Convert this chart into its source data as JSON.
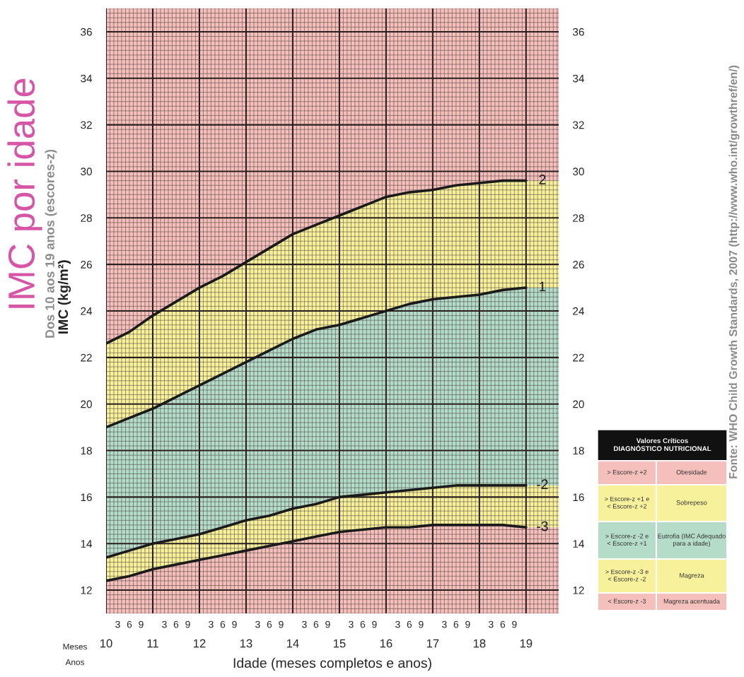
{
  "chart_data": {
    "type": "line",
    "title": "IMC por idade",
    "subtitle": "Dos 10 aos 19 anos (escores-z)",
    "ylabel": "IMC (kg/m²)",
    "xlabel": "Idade (meses completos e anos)",
    "x": [
      10,
      10.5,
      11,
      11.5,
      12,
      12.5,
      13,
      13.5,
      14,
      14.5,
      15,
      15.5,
      16,
      16.5,
      17,
      17.5,
      18,
      18.5,
      19
    ],
    "series": [
      {
        "name": "2",
        "color": "#1a1a1a",
        "values": [
          22.6,
          23.1,
          23.8,
          24.4,
          25.0,
          25.5,
          26.1,
          26.7,
          27.3,
          27.7,
          28.1,
          28.5,
          28.9,
          29.1,
          29.2,
          29.4,
          29.5,
          29.6,
          29.6
        ]
      },
      {
        "name": "1",
        "color": "#1a1a1a",
        "values": [
          19.0,
          19.4,
          19.8,
          20.3,
          20.8,
          21.3,
          21.8,
          22.3,
          22.8,
          23.2,
          23.4,
          23.7,
          24.0,
          24.3,
          24.5,
          24.6,
          24.7,
          24.9,
          25.0
        ]
      },
      {
        "name": "-2",
        "color": "#1a1a1a",
        "values": [
          13.4,
          13.7,
          14.0,
          14.2,
          14.4,
          14.7,
          15.0,
          15.2,
          15.5,
          15.7,
          16.0,
          16.1,
          16.2,
          16.3,
          16.4,
          16.5,
          16.5,
          16.5,
          16.5
        ]
      },
      {
        "name": "-3",
        "color": "#1a1a1a",
        "values": [
          12.4,
          12.6,
          12.9,
          13.1,
          13.3,
          13.5,
          13.7,
          13.9,
          14.1,
          14.3,
          14.5,
          14.6,
          14.7,
          14.7,
          14.8,
          14.8,
          14.8,
          14.8,
          14.7
        ]
      }
    ],
    "colors": [
      "#f5bfbb",
      "#f8f19c",
      "#b4dcc9",
      "#f8f19c",
      "#f5bfbb"
    ],
    "xlim": [
      10,
      19.7
    ],
    "ylim": [
      11,
      37
    ],
    "xticks": [
      10,
      11,
      12,
      13,
      14,
      15,
      16,
      17,
      18,
      19
    ],
    "yticks": [
      12,
      14,
      16,
      18,
      20,
      22,
      24,
      26,
      28,
      30,
      32,
      34,
      36
    ],
    "y2lim": [
      11,
      37
    ],
    "y2ticks": [
      12,
      14,
      16,
      18,
      20,
      22,
      24,
      26,
      28,
      30,
      32,
      34,
      36
    ],
    "grid": true,
    "annotations": [
      "Valores Críticos\nDIAGNÓSTICO NUTRICIONAL",
      "> Escore-z +2",
      "Obesidade",
      "> Escore-z +1 e\n< Escore-z +2",
      "Sobrepeso",
      "> Escore-z -2 e\n< Escore-z +1",
      "Eutrofia (IMC Adequado\npara a idade)",
      "> Escore-z -3 e\n< Escore-z -2",
      "Magreza",
      "< Escore-z -3",
      "Magreza acentuada",
      "Meses",
      "Anos",
      "Fonte: WHO Child Growth Standards, 2007 (http://www.who.int/growthref/en/)",
      "3",
      "6",
      "9",
      "3",
      "6",
      "9",
      "3",
      "6",
      "9",
      "3",
      "6",
      "9",
      "3",
      "6",
      "9",
      "3",
      "6",
      "9",
      "3",
      "6",
      "9",
      "3",
      "6",
      "9",
      "3",
      "6",
      "9"
    ]
  }
}
